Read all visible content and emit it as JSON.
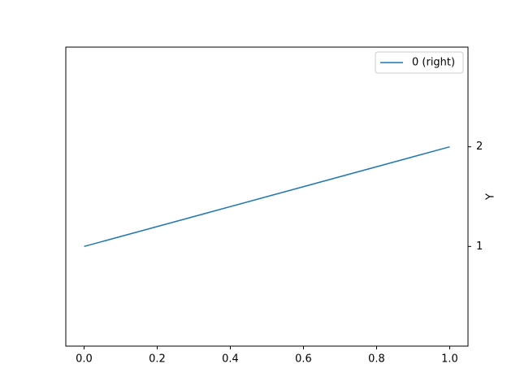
{
  "chart_data": {
    "type": "line",
    "x": [
      0,
      1
    ],
    "series": [
      {
        "name": "0 (right)",
        "color": "#1f77b4",
        "values": [
          1,
          2
        ],
        "axis": "y2"
      }
    ],
    "xlim": [
      -0.05,
      1.05
    ],
    "xticks": [
      {
        "value": 0,
        "label": "0.0"
      },
      0.2,
      0.4,
      0.6,
      0.8,
      {
        "value": 1,
        "label": "1.0"
      }
    ],
    "y2lim": [
      0,
      3
    ],
    "y2ticks": [
      1,
      2
    ],
    "y2label": "Y",
    "legend": "upper right",
    "grid": false
  }
}
